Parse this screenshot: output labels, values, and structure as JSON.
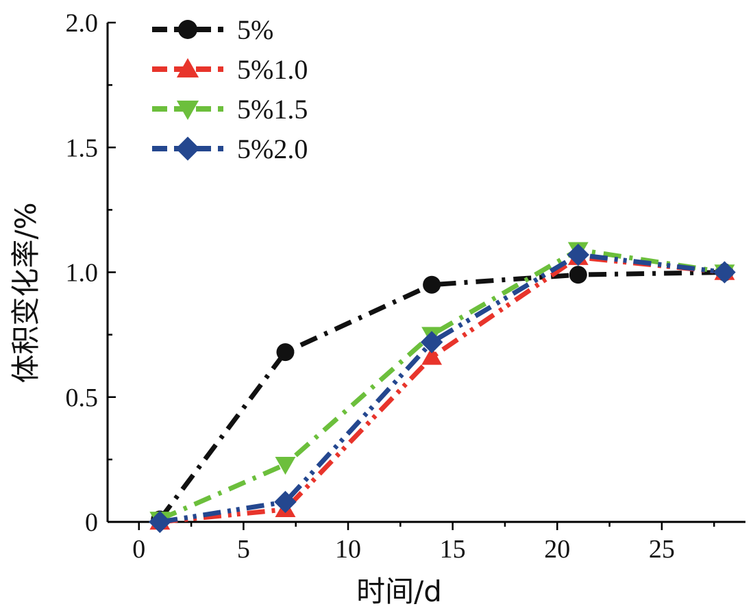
{
  "chart_data": {
    "type": "line",
    "title": "",
    "xlabel": "时间/d",
    "ylabel": "体积变化率/%",
    "xlim": [
      -1.5,
      29
    ],
    "ylim": [
      0,
      2.0
    ],
    "x_ticks": [
      0,
      5,
      10,
      15,
      20,
      25
    ],
    "x_tick_labels": [
      "0",
      "5",
      "10",
      "15",
      "20",
      "25"
    ],
    "y_ticks": [
      0,
      0.5,
      1.0,
      1.5,
      2.0
    ],
    "y_tick_labels": [
      "0",
      "0.5",
      "1.0",
      "1.5",
      "2.0"
    ],
    "grid": false,
    "legend_position": "top-left",
    "x": [
      1,
      7,
      14,
      21,
      28
    ],
    "series": [
      {
        "name": "5%",
        "values": [
          0.01,
          0.68,
          0.95,
          0.99,
          1.0
        ],
        "color": "#111111",
        "marker": "circle",
        "dash": "dashdot"
      },
      {
        "name": "5%1.0",
        "values": [
          0.0,
          0.05,
          0.66,
          1.06,
          1.0
        ],
        "color": "#e8342b",
        "marker": "triangle-up",
        "dash": "dashdotdot"
      },
      {
        "name": "5%1.5",
        "values": [
          0.01,
          0.23,
          0.75,
          1.09,
          1.0
        ],
        "color": "#6cbf3c",
        "marker": "triangle-down",
        "dash": "dashdot"
      },
      {
        "name": "5%2.0",
        "values": [
          0.0,
          0.08,
          0.72,
          1.07,
          1.0
        ],
        "color": "#24478f",
        "marker": "diamond",
        "dash": "dashdotdot"
      }
    ]
  }
}
